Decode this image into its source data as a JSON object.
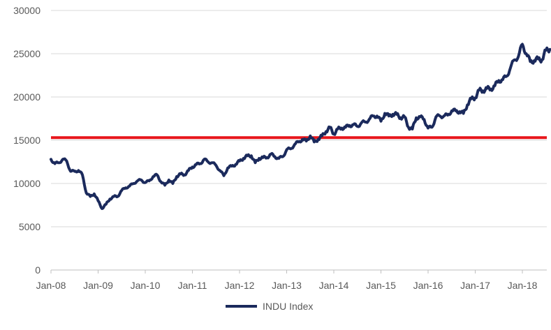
{
  "chart_data": {
    "type": "line",
    "title": "",
    "xlabel": "",
    "ylabel": "",
    "ylim": [
      0,
      30000
    ],
    "yticks": [
      0,
      5000,
      10000,
      15000,
      20000,
      25000,
      30000
    ],
    "ytick_labels": [
      "0",
      "5000",
      "10000",
      "15000",
      "20000",
      "25000",
      "30000"
    ],
    "xticks": [
      "Jan-08",
      "Jan-09",
      "Jan-10",
      "Jan-11",
      "Jan-12",
      "Jan-13",
      "Jan-14",
      "Jan-15",
      "Jan-16",
      "Jan-17",
      "Jan-18"
    ],
    "xlim": [
      "Jan-08",
      "Aug-18"
    ],
    "grid": "horizontal",
    "legend": "bottom",
    "series": [
      {
        "name": "INDU Index",
        "color": "#1b2a5c",
        "x": [
          "Jan-08",
          "Feb-08",
          "Mar-08",
          "Apr-08",
          "May-08",
          "Jun-08",
          "Jul-08",
          "Aug-08",
          "Sep-08",
          "Oct-08",
          "Nov-08",
          "Dec-08",
          "Jan-09",
          "Feb-09",
          "Mar-09",
          "Apr-09",
          "May-09",
          "Jun-09",
          "Jul-09",
          "Aug-09",
          "Sep-09",
          "Oct-09",
          "Nov-09",
          "Dec-09",
          "Jan-10",
          "Feb-10",
          "Mar-10",
          "Apr-10",
          "May-10",
          "Jun-10",
          "Jul-10",
          "Aug-10",
          "Sep-10",
          "Oct-10",
          "Nov-10",
          "Dec-10",
          "Jan-11",
          "Feb-11",
          "Mar-11",
          "Apr-11",
          "May-11",
          "Jun-11",
          "Jul-11",
          "Aug-11",
          "Sep-11",
          "Oct-11",
          "Nov-11",
          "Dec-11",
          "Jan-12",
          "Feb-12",
          "Mar-12",
          "Apr-12",
          "May-12",
          "Jun-12",
          "Jul-12",
          "Aug-12",
          "Sep-12",
          "Oct-12",
          "Nov-12",
          "Dec-12",
          "Jan-13",
          "Feb-13",
          "Mar-13",
          "Apr-13",
          "May-13",
          "Jun-13",
          "Jul-13",
          "Aug-13",
          "Sep-13",
          "Oct-13",
          "Nov-13",
          "Dec-13",
          "Jan-14",
          "Feb-14",
          "Mar-14",
          "Apr-14",
          "May-14",
          "Jun-14",
          "Jul-14",
          "Aug-14",
          "Sep-14",
          "Oct-14",
          "Nov-14",
          "Dec-14",
          "Jan-15",
          "Feb-15",
          "Mar-15",
          "Apr-15",
          "May-15",
          "Jun-15",
          "Jul-15",
          "Aug-15",
          "Sep-15",
          "Oct-15",
          "Nov-15",
          "Dec-15",
          "Jan-16",
          "Feb-16",
          "Mar-16",
          "Apr-16",
          "May-16",
          "Jun-16",
          "Jul-16",
          "Aug-16",
          "Sep-16",
          "Oct-16",
          "Nov-16",
          "Dec-16",
          "Jan-17",
          "Feb-17",
          "Mar-17",
          "Apr-17",
          "May-17",
          "Jun-17",
          "Jul-17",
          "Aug-17",
          "Sep-17",
          "Oct-17",
          "Nov-17",
          "Dec-17",
          "Jan-18",
          "Feb-18",
          "Mar-18",
          "Apr-18",
          "May-18",
          "Jun-18",
          "Jul-18",
          "Aug-18"
        ],
        "values": [
          12800,
          12300,
          12400,
          12800,
          12600,
          11400,
          11400,
          11500,
          11000,
          8900,
          8500,
          8800,
          8000,
          7100,
          7600,
          8200,
          8500,
          8500,
          9200,
          9500,
          9700,
          10000,
          10300,
          10400,
          10100,
          10300,
          10800,
          11000,
          10200,
          9800,
          10400,
          10000,
          10800,
          11100,
          11000,
          11500,
          11900,
          12200,
          12300,
          12800,
          12500,
          12400,
          12100,
          11500,
          10900,
          11800,
          12000,
          12200,
          12600,
          12900,
          13200,
          13200,
          12400,
          12900,
          13000,
          13000,
          13400,
          13100,
          12900,
          13100,
          13900,
          14000,
          14500,
          14800,
          15100,
          14900,
          15500,
          14800,
          15100,
          15500,
          16000,
          16500,
          15700,
          16300,
          16400,
          16500,
          16700,
          16800,
          16600,
          17000,
          17100,
          17400,
          17800,
          17800,
          17200,
          18100,
          17800,
          18000,
          18000,
          17600,
          17700,
          16500,
          16300,
          17600,
          17700,
          17400,
          16400,
          16500,
          17700,
          17800,
          17800,
          17900,
          18400,
          18400,
          18300,
          18100,
          19100,
          19800,
          19900,
          20800,
          20700,
          21000,
          20900,
          21300,
          21900,
          22000,
          22400,
          23400,
          24300,
          24700,
          26100,
          25000,
          24100,
          24200,
          24400,
          24300,
          25400,
          25500
        ]
      }
    ],
    "reference_lines": [
      {
        "axis": "y",
        "value": 15300,
        "color": "#e8161b"
      }
    ]
  }
}
